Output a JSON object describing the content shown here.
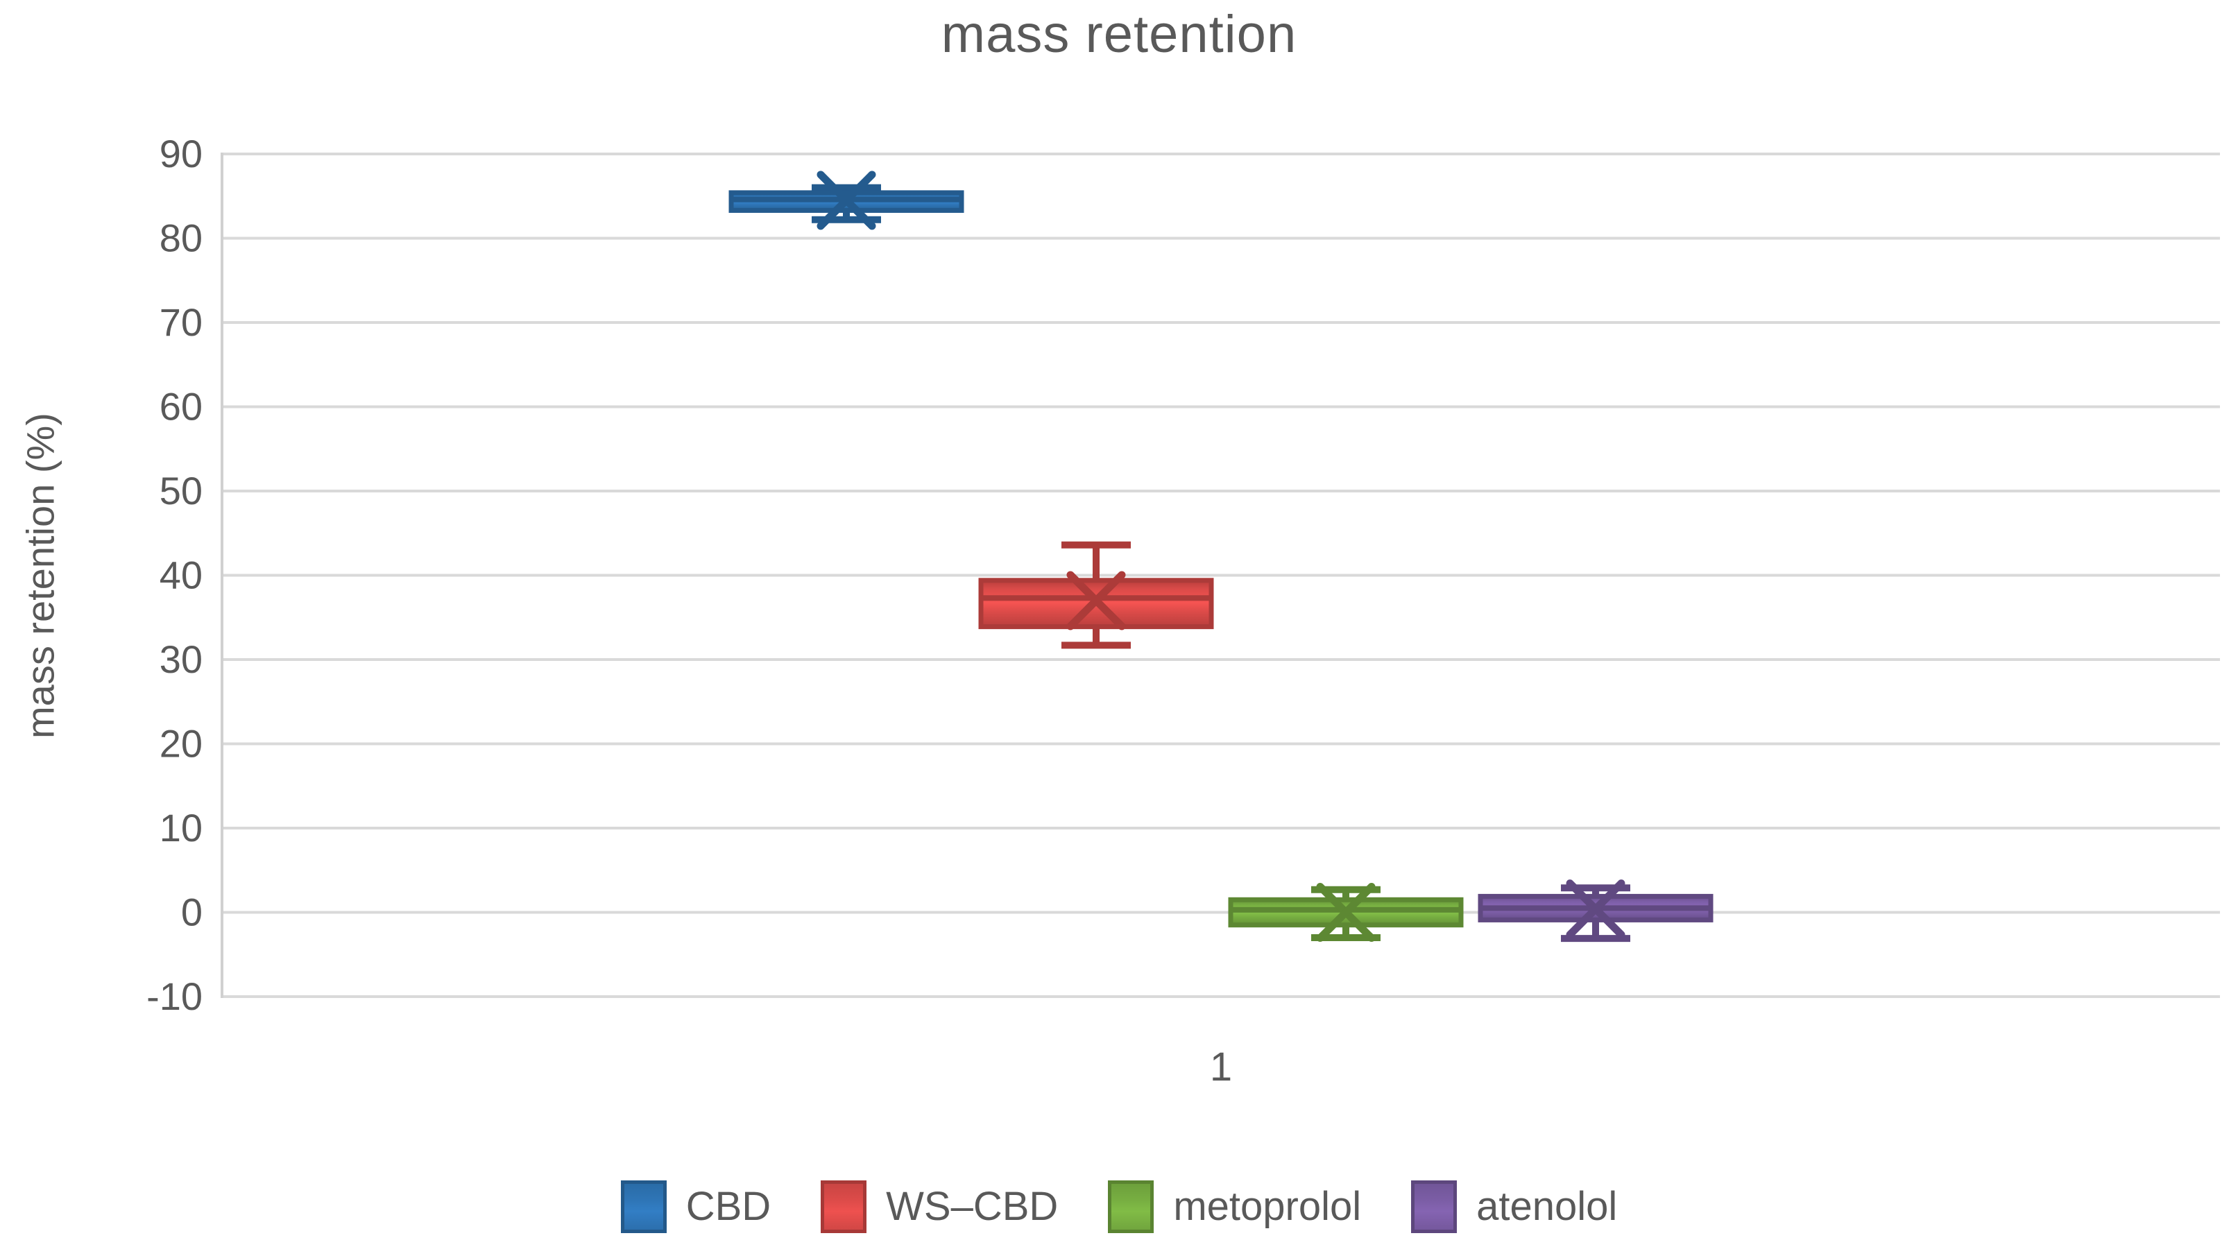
{
  "chart_data": {
    "type": "box",
    "title": "mass retention",
    "ylabel": "mass retention (%)",
    "xlabel": "",
    "categories": [
      "1"
    ],
    "ylim": [
      -10,
      90
    ],
    "ytick_step": 10,
    "grid": true,
    "legend_position": "bottom",
    "colors": {
      "text": "#595959",
      "gridline": "#D9D9D9",
      "axis_line": "#D0D0D0",
      "background": "#FFFFFF"
    },
    "series": [
      {
        "name": "CBD",
        "color": "#2E75B6",
        "min": 82.2,
        "q1": 83.3,
        "median": 84.6,
        "q3": 85.4,
        "max": 86.0,
        "mean": 84.5
      },
      {
        "name": "WS–CBD",
        "color": "#DC4B49",
        "min": 31.7,
        "q1": 33.9,
        "median": 37.3,
        "q3": 39.4,
        "max": 43.6,
        "mean": 37.0
      },
      {
        "name": "metoprolol",
        "color": "#77AE41",
        "min": -3.0,
        "q1": -1.5,
        "median": 0.3,
        "q3": 1.5,
        "max": 2.7,
        "mean": 0.0
      },
      {
        "name": "atenolol",
        "color": "#7B5DA5",
        "min": -3.1,
        "q1": -0.9,
        "median": 0.5,
        "q3": 1.9,
        "max": 2.9,
        "mean": 0.4
      }
    ]
  }
}
